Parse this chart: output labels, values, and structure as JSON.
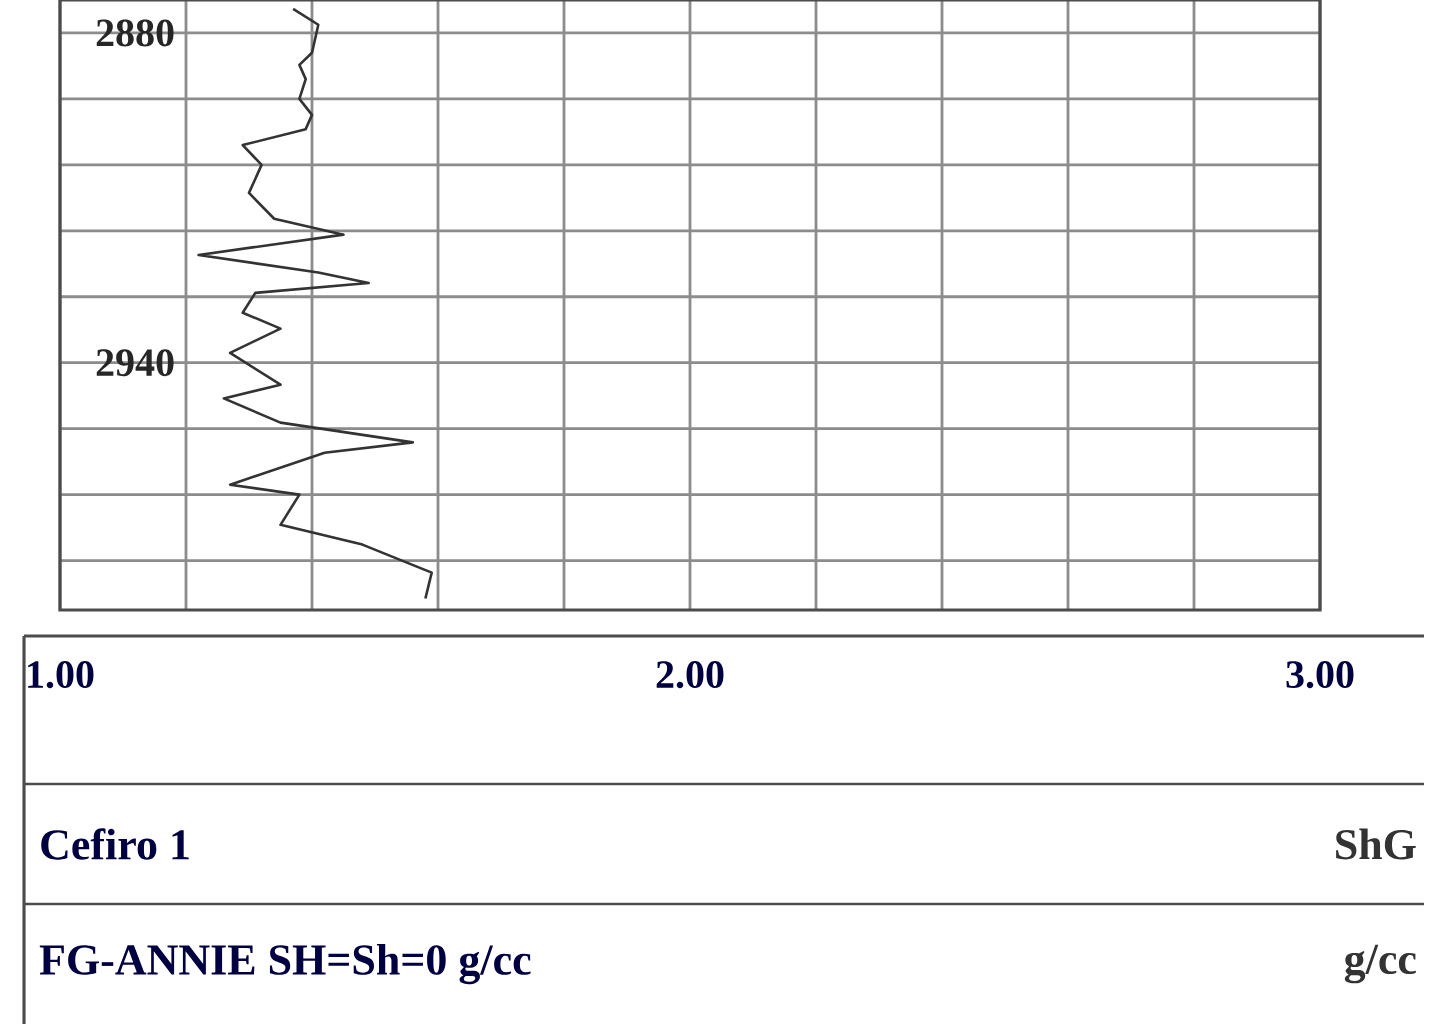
{
  "chart_data": {
    "type": "line",
    "series": [
      {
        "color": "#333333",
        "x": [
          1.37,
          1.41,
          1.4,
          1.38,
          1.39,
          1.38,
          1.4,
          1.39,
          1.29,
          1.32,
          1.3,
          1.34,
          1.45,
          1.22,
          1.41,
          1.49,
          1.31,
          1.29,
          1.35,
          1.27,
          1.35,
          1.26,
          1.35,
          1.56,
          1.42,
          1.27,
          1.38,
          1.35,
          1.48,
          1.59,
          1.58
        ],
        "values": [
          2875.6,
          2878.5,
          2883.6,
          2885.8,
          2888.4,
          2892.0,
          2894.9,
          2897.5,
          2900.4,
          2904.0,
          2909.1,
          2913.8,
          2916.7,
          2920.4,
          2923.6,
          2925.5,
          2927.3,
          2930.9,
          2933.8,
          2938.2,
          2944.0,
          2946.5,
          2950.9,
          2954.5,
          2956.4,
          2962.2,
          2964.0,
          2969.5,
          2973.1,
          2978.2,
          2982.9
        ]
      }
    ],
    "xlim": [
      1,
      3
    ],
    "xticks": [
      {
        "value": 1,
        "label": "1.00"
      },
      {
        "value": 1.2,
        "label": null
      },
      {
        "value": 1.4,
        "label": null
      },
      {
        "value": 1.6,
        "label": null
      },
      {
        "value": 1.8,
        "label": null
      },
      {
        "value": 2,
        "label": "2.00"
      },
      {
        "value": 2.2,
        "label": null
      },
      {
        "value": 2.4,
        "label": null
      },
      {
        "value": 2.6,
        "label": null
      },
      {
        "value": 2.8,
        "label": null
      },
      {
        "value": 3,
        "label": "3.00"
      }
    ],
    "ylim": [
      2985,
      2874
    ],
    "yticks": [
      {
        "value": 2880,
        "label": "2880"
      },
      {
        "value": 2892,
        "label": null
      },
      {
        "value": 2904,
        "label": null
      },
      {
        "value": 2916,
        "label": null
      },
      {
        "value": 2928,
        "label": null
      },
      {
        "value": 2940,
        "label": "2940"
      },
      {
        "value": 2952,
        "label": null
      },
      {
        "value": 2964,
        "label": null
      },
      {
        "value": 2976,
        "label": null
      }
    ],
    "grid": true,
    "annotations": [
      "Cefiro 1",
      "ShG",
      "FG-ANNIE  SH=Sh=0  g/cc",
      "g/cc"
    ]
  }
}
